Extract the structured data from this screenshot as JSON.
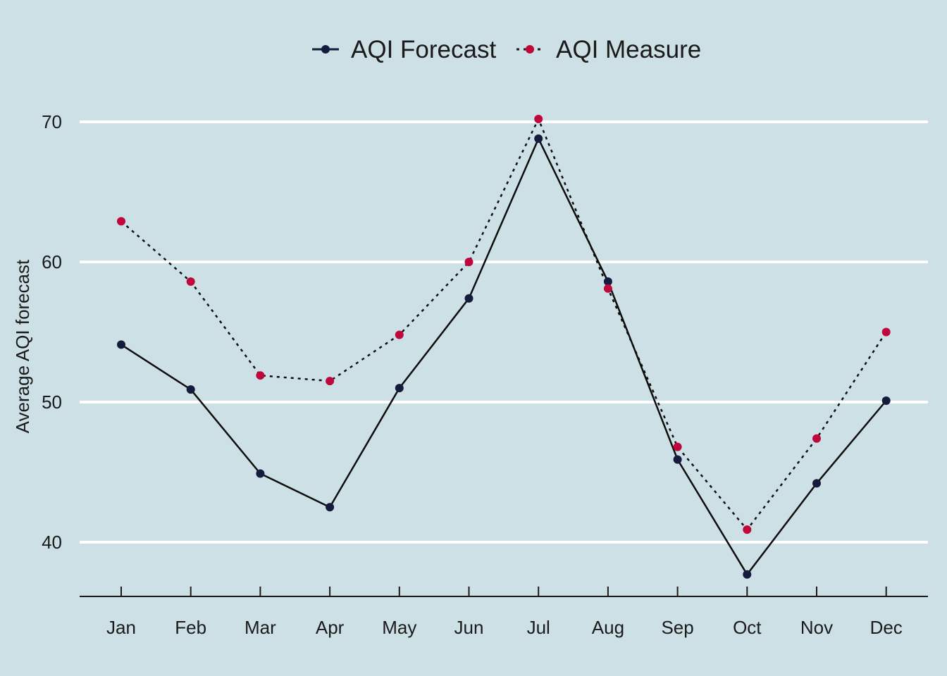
{
  "chart_data": {
    "type": "line",
    "title": "",
    "xlabel": "",
    "ylabel": "Average AQI forecast",
    "categories": [
      "Jan",
      "Feb",
      "Mar",
      "Apr",
      "May",
      "Jun",
      "Jul",
      "Aug",
      "Sep",
      "Oct",
      "Nov",
      "Dec"
    ],
    "ylim": [
      36.1,
      70.2
    ],
    "yticks": [
      40,
      50,
      60,
      70
    ],
    "grid": "horizontal",
    "legend_position": "top",
    "series": [
      {
        "name": "AQI Forecast",
        "values": [
          54.1,
          50.9,
          44.9,
          42.5,
          51.0,
          57.4,
          68.8,
          58.6,
          45.9,
          37.7,
          44.2,
          50.1
        ],
        "color": "#141b3d",
        "line_style": "solid"
      },
      {
        "name": "AQI Measure",
        "values": [
          62.9,
          58.6,
          51.9,
          51.5,
          54.8,
          60.0,
          70.2,
          58.1,
          46.8,
          40.9,
          47.4,
          55.0
        ],
        "color": "#c0073b",
        "line_style": "dotted"
      }
    ],
    "colors": {
      "background": "#cde0e6",
      "grid": "#ffffff",
      "axis": "#1a1a1a"
    }
  }
}
